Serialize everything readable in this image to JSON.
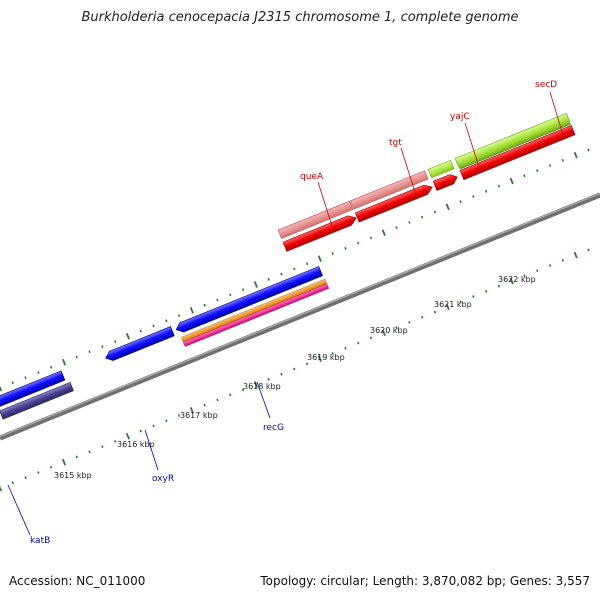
{
  "title": "Burkholderia cenocepacia J2315 chromosome 1, complete genome",
  "footer": {
    "accession": "Accession: NC_011000",
    "stats": "Topology: circular; Length: 3,870,082 bp; Genes: 3,557"
  },
  "colors": {
    "backbone": "#8c8c8c",
    "tick": "#2e7d32",
    "forward_label": "#cc0000",
    "reverse_label": "#0000cc"
  },
  "kbp_labels": [
    "3615 kbp",
    "3616 kbp",
    "3617 kbp",
    "3618 kbp",
    "3619 kbp",
    "3620 kbp",
    "3621 kbp",
    "3622 kbp"
  ],
  "gene_labels": {
    "forward": [
      "queA",
      "tgt",
      "yajC",
      "secD"
    ],
    "reverse": [
      "katB",
      "oxyR",
      "recG"
    ]
  }
}
